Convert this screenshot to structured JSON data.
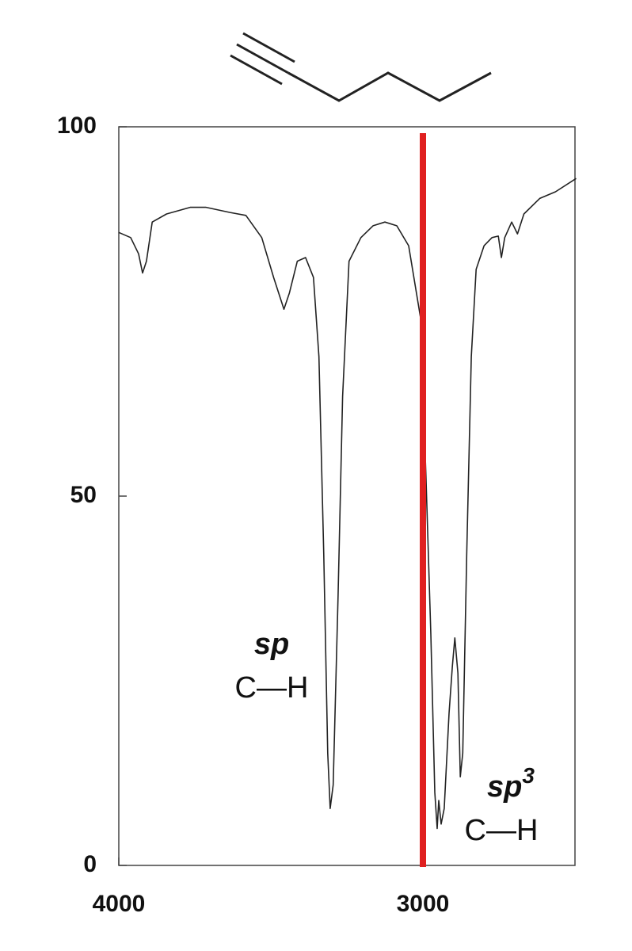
{
  "chart_data": {
    "type": "line",
    "xlim": [
      4000,
      2500
    ],
    "ylim": [
      0,
      100
    ],
    "xticks": [
      4000,
      3000
    ],
    "yticks": [
      0,
      50,
      100
    ],
    "grid": false,
    "vline": {
      "x": 3000,
      "color": "#e02020"
    },
    "series": [
      {
        "name": null,
        "color": "#222222",
        "x": [
          4000,
          3961,
          3935,
          3922,
          3909,
          3890,
          3843,
          3765,
          3713,
          3634,
          3582,
          3530,
          3491,
          3457,
          3439,
          3413,
          3386,
          3360,
          3342,
          3326,
          3313,
          3305,
          3295,
          3279,
          3264,
          3243,
          3204,
          3164,
          3125,
          3086,
          3047,
          3008,
          2990,
          2974,
          2961,
          2953,
          2948,
          2940,
          2930,
          2914,
          2903,
          2895,
          2885,
          2877,
          2869,
          2856,
          2841,
          2825,
          2799,
          2773,
          2752,
          2742,
          2731,
          2708,
          2689,
          2668,
          2616,
          2564,
          2496
        ],
        "values": [
          85.7,
          85,
          82.8,
          80.2,
          81.8,
          87.1,
          88.2,
          89.1,
          89.1,
          88.4,
          88,
          85,
          79.6,
          75.3,
          77.5,
          81.8,
          82.3,
          79.6,
          68.9,
          42.1,
          15.2,
          7.7,
          10.9,
          36.6,
          63.5,
          81.8,
          85,
          86.6,
          87.1,
          86.6,
          83.9,
          74.2,
          52.8,
          31.3,
          9.9,
          5,
          8.8,
          5.6,
          7.7,
          20.6,
          27,
          30.8,
          26,
          12,
          15.2,
          42.1,
          68.9,
          80.7,
          83.9,
          85,
          85.2,
          82.3,
          85,
          87.1,
          85.5,
          88.2,
          90.3,
          91.2,
          93
        ]
      }
    ],
    "annotations": [
      {
        "text": "sp",
        "label": "C—H"
      },
      {
        "text": "sp",
        "superscript": "3",
        "label": "C—H"
      }
    ]
  }
}
